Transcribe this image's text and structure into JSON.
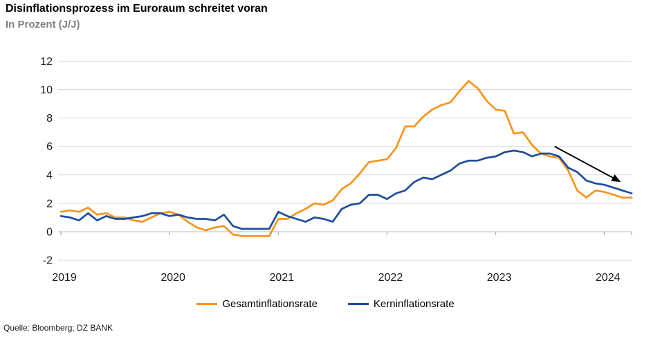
{
  "header": {
    "title": "Disinflationsprozess im Euroraum schreitet voran",
    "subtitle": "In Prozent (J/J)"
  },
  "source": "Quelle: Bloomberg; DZ BANK",
  "ui_colors": {
    "subtitle_gray": "#7f7f7f",
    "gridline": "#d9d9d9",
    "axis_line": "#c8c8c8",
    "tick_mark": "#ababab",
    "tick_label": "#1a1a1a",
    "arrow": "#000000"
  },
  "chart_data": {
    "type": "line",
    "title": "Disinflationsprozess im Euroraum schreitet voran",
    "subtitle": "In Prozent (J/J)",
    "ylabel": "Prozent (J/J)",
    "frequency": "monthly",
    "x_start": "2019-01",
    "x_end": "2024-04",
    "x_tick_labels": [
      "2019",
      "2020",
      "2021",
      "2022",
      "2023",
      "2024"
    ],
    "x_tick_month_indices": [
      0,
      12,
      24,
      36,
      48,
      60
    ],
    "ylim": [
      -2,
      12
    ],
    "y_ticks": [
      12,
      10,
      8,
      6,
      4,
      2,
      0,
      -2
    ],
    "grid": "horizontal",
    "legend_position": "bottom",
    "series": [
      {
        "name": "Gesamtinflationsrate",
        "color": "#f7941e",
        "values": [
          1.4,
          1.5,
          1.4,
          1.7,
          1.2,
          1.3,
          1.0,
          1.0,
          0.8,
          0.7,
          1.0,
          1.3,
          1.4,
          1.2,
          0.7,
          0.3,
          0.1,
          0.3,
          0.4,
          -0.2,
          -0.3,
          -0.3,
          -0.3,
          -0.3,
          0.9,
          0.9,
          1.3,
          1.6,
          2.0,
          1.9,
          2.2,
          3.0,
          3.4,
          4.1,
          4.9,
          5.0,
          5.1,
          5.9,
          7.4,
          7.4,
          8.1,
          8.6,
          8.9,
          9.1,
          9.9,
          10.6,
          10.1,
          9.2,
          8.6,
          8.5,
          6.9,
          7.0,
          6.1,
          5.5,
          5.3,
          5.2,
          4.3,
          2.9,
          2.4,
          2.9,
          2.8,
          2.6,
          2.4,
          2.4
        ]
      },
      {
        "name": "Kerninflationsrate",
        "color": "#1f4e9e",
        "values": [
          1.1,
          1.0,
          0.8,
          1.3,
          0.8,
          1.1,
          0.9,
          0.9,
          1.0,
          1.1,
          1.3,
          1.3,
          1.1,
          1.2,
          1.0,
          0.9,
          0.9,
          0.8,
          1.2,
          0.4,
          0.2,
          0.2,
          0.2,
          0.2,
          1.4,
          1.1,
          0.9,
          0.7,
          1.0,
          0.9,
          0.7,
          1.6,
          1.9,
          2.0,
          2.6,
          2.6,
          2.3,
          2.7,
          2.9,
          3.5,
          3.8,
          3.7,
          4.0,
          4.3,
          4.8,
          5.0,
          5.0,
          5.2,
          5.3,
          5.6,
          5.7,
          5.6,
          5.3,
          5.5,
          5.5,
          5.3,
          4.5,
          4.2,
          3.6,
          3.4,
          3.3,
          3.1,
          2.9,
          2.7
        ]
      }
    ],
    "annotation": {
      "type": "arrow",
      "description": "downward trend arrow",
      "from_month_index": 54.5,
      "from_value": 6.0,
      "to_month_index": 61.8,
      "to_value": 3.5
    }
  }
}
